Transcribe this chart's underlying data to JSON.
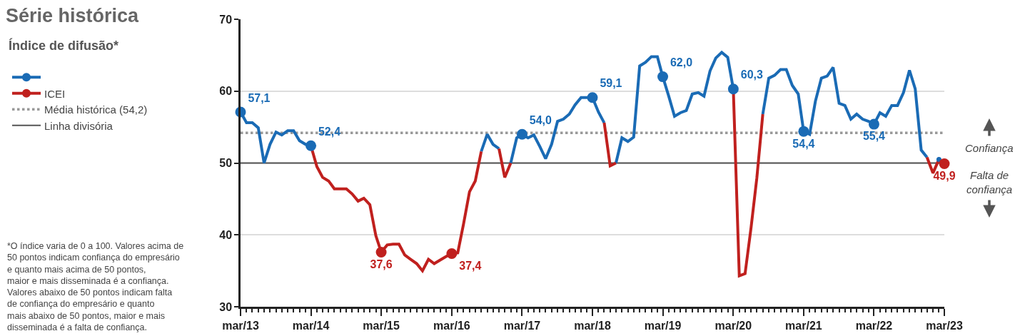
{
  "chart_data": {
    "type": "line",
    "title": "Série histórica",
    "subtitle": "Índice de difusão*",
    "x": [
      "2013-03",
      "2013-04",
      "2013-05",
      "2013-06",
      "2013-07",
      "2013-08",
      "2013-09",
      "2013-10",
      "2013-11",
      "2013-12",
      "2014-01",
      "2014-02",
      "2014-03",
      "2014-04",
      "2014-05",
      "2014-06",
      "2014-07",
      "2014-08",
      "2014-09",
      "2014-10",
      "2014-11",
      "2014-12",
      "2015-01",
      "2015-02",
      "2015-03",
      "2015-04",
      "2015-05",
      "2015-06",
      "2015-07",
      "2015-08",
      "2015-09",
      "2015-10",
      "2015-11",
      "2015-12",
      "2016-01",
      "2016-02",
      "2016-03",
      "2016-04",
      "2016-05",
      "2016-06",
      "2016-07",
      "2016-08",
      "2016-09",
      "2016-10",
      "2016-11",
      "2016-12",
      "2017-01",
      "2017-02",
      "2017-03",
      "2017-04",
      "2017-05",
      "2017-06",
      "2017-07",
      "2017-08",
      "2017-09",
      "2017-10",
      "2017-11",
      "2017-12",
      "2018-01",
      "2018-02",
      "2018-03",
      "2018-04",
      "2018-05",
      "2018-06",
      "2018-07",
      "2018-08",
      "2018-09",
      "2018-10",
      "2018-11",
      "2018-12",
      "2019-01",
      "2019-02",
      "2019-03",
      "2019-04",
      "2019-05",
      "2019-06",
      "2019-07",
      "2019-08",
      "2019-09",
      "2019-10",
      "2019-11",
      "2019-12",
      "2020-01",
      "2020-02",
      "2020-03",
      "2020-04",
      "2020-05",
      "2020-06",
      "2020-07",
      "2020-08",
      "2020-09",
      "2020-10",
      "2020-11",
      "2020-12",
      "2021-01",
      "2021-02",
      "2021-03",
      "2021-04",
      "2021-05",
      "2021-06",
      "2021-07",
      "2021-08",
      "2021-09",
      "2021-10",
      "2021-11",
      "2021-12",
      "2022-01",
      "2022-02",
      "2022-03",
      "2022-04",
      "2022-05",
      "2022-06",
      "2022-07",
      "2022-08",
      "2022-09",
      "2022-10",
      "2022-11",
      "2022-12",
      "2023-01",
      "2023-02",
      "2023-03"
    ],
    "series": [
      {
        "color": "#1a6bb5",
        "values": [
          57.1,
          55.6,
          55.6,
          54.9,
          50.0,
          52.6,
          54.3,
          53.9,
          54.5,
          54.5,
          53.1,
          52.6,
          52.4,
          null,
          null,
          null,
          null,
          null,
          null,
          null,
          null,
          null,
          null,
          null,
          null,
          null,
          null,
          null,
          null,
          null,
          null,
          null,
          null,
          null,
          null,
          null,
          null,
          null,
          null,
          null,
          null,
          51.6,
          54.0,
          52.6,
          52.0,
          null,
          50.0,
          53.5,
          54.0,
          53.5,
          53.9,
          52.3,
          50.6,
          52.6,
          55.8,
          56.1,
          56.8,
          58.1,
          59.1,
          59.1,
          59.1,
          57.1,
          55.6,
          null,
          50.0,
          53.5,
          53.0,
          53.6,
          63.5,
          64.0,
          64.8,
          64.8,
          62.0,
          59.3,
          56.5,
          57.0,
          57.3,
          59.6,
          59.8,
          59.3,
          62.8,
          64.6,
          65.4,
          64.7,
          60.3,
          null,
          null,
          null,
          null,
          56.8,
          61.8,
          62.2,
          63.0,
          63.0,
          60.8,
          59.6,
          54.4,
          54.0,
          58.6,
          61.8,
          62.1,
          63.3,
          58.3,
          58.0,
          56.1,
          56.8,
          56.1,
          55.8,
          55.4,
          57.0,
          56.5,
          58.0,
          58.0,
          59.8,
          62.9,
          60.3,
          51.8,
          50.8,
          null,
          50.5,
          null
        ],
        "value_labels": [
          "57,1",
          null,
          null,
          null,
          null,
          null,
          null,
          null,
          null,
          null,
          null,
          null,
          "52,4",
          null,
          null,
          null,
          null,
          null,
          null,
          null,
          null,
          null,
          null,
          null,
          null,
          null,
          null,
          null,
          null,
          null,
          null,
          null,
          null,
          null,
          null,
          null,
          null,
          null,
          null,
          null,
          null,
          null,
          null,
          null,
          null,
          null,
          null,
          null,
          "54,0",
          null,
          null,
          null,
          null,
          null,
          null,
          null,
          null,
          null,
          null,
          null,
          "59,1",
          null,
          null,
          null,
          null,
          null,
          null,
          null,
          null,
          null,
          null,
          null,
          "62,0",
          null,
          null,
          null,
          null,
          null,
          null,
          null,
          null,
          null,
          null,
          null,
          "60,3",
          null,
          null,
          null,
          null,
          null,
          null,
          null,
          null,
          null,
          null,
          null,
          "54,4",
          null,
          null,
          null,
          null,
          null,
          null,
          null,
          null,
          null,
          null,
          null,
          "55,4",
          null,
          null,
          null,
          null,
          null,
          null,
          null,
          null,
          null,
          null,
          null,
          null
        ]
      },
      {
        "name": "ICEI",
        "color": "#c0201e",
        "values": [
          null,
          null,
          null,
          null,
          null,
          null,
          null,
          null,
          null,
          null,
          null,
          null,
          52.4,
          49.5,
          48.0,
          47.5,
          46.4,
          46.4,
          46.4,
          45.7,
          44.7,
          45.1,
          44.2,
          39.9,
          37.6,
          38.6,
          38.7,
          38.7,
          37.2,
          36.6,
          36.0,
          35.0,
          36.6,
          36.0,
          36.5,
          37.0,
          37.4,
          37.5,
          41.5,
          46.0,
          47.5,
          51.6,
          null,
          null,
          52.0,
          48.0,
          50.0,
          null,
          null,
          null,
          null,
          null,
          null,
          null,
          null,
          null,
          null,
          null,
          null,
          null,
          null,
          null,
          55.6,
          49.6,
          50.0,
          null,
          null,
          null,
          null,
          null,
          null,
          null,
          null,
          null,
          null,
          null,
          null,
          null,
          null,
          null,
          null,
          null,
          null,
          null,
          60.3,
          34.3,
          34.6,
          41.0,
          47.9,
          56.8,
          null,
          null,
          null,
          null,
          null,
          null,
          null,
          null,
          null,
          null,
          null,
          null,
          null,
          null,
          null,
          null,
          null,
          null,
          null,
          null,
          null,
          null,
          null,
          null,
          null,
          null,
          null,
          50.8,
          48.6,
          50.5,
          49.9
        ],
        "value_labels": [
          null,
          null,
          null,
          null,
          null,
          null,
          null,
          null,
          null,
          null,
          null,
          null,
          null,
          null,
          null,
          null,
          null,
          null,
          null,
          null,
          null,
          null,
          null,
          null,
          "37,6",
          null,
          null,
          null,
          null,
          null,
          null,
          null,
          null,
          null,
          null,
          null,
          "37,4",
          null,
          null,
          null,
          null,
          null,
          null,
          null,
          null,
          null,
          null,
          null,
          null,
          null,
          null,
          null,
          null,
          null,
          null,
          null,
          null,
          null,
          null,
          null,
          null,
          null,
          null,
          null,
          null,
          null,
          null,
          null,
          null,
          null,
          null,
          null,
          null,
          null,
          null,
          null,
          null,
          null,
          null,
          null,
          null,
          null,
          null,
          null,
          null,
          null,
          null,
          null,
          null,
          null,
          null,
          null,
          null,
          null,
          null,
          null,
          null,
          null,
          null,
          null,
          null,
          null,
          null,
          null,
          null,
          null,
          null,
          null,
          null,
          null,
          null,
          null,
          null,
          null,
          null,
          null,
          null,
          null,
          null,
          null,
          "49,9"
        ]
      }
    ],
    "xlim": [
      "2013-03",
      "2023-03"
    ],
    "xticks": [
      {
        "value": "2013-03",
        "label": "mar/13"
      },
      {
        "value": "2014-03",
        "label": "mar/14"
      },
      {
        "value": "2015-03",
        "label": "mar/15"
      },
      {
        "value": "2016-03",
        "label": "mar/16"
      },
      {
        "value": "2017-03",
        "label": "mar/17"
      },
      {
        "value": "2018-03",
        "label": "mar/18"
      },
      {
        "value": "2019-03",
        "label": "mar/19"
      },
      {
        "value": "2020-03",
        "label": "mar/20"
      },
      {
        "value": "2021-03",
        "label": "mar/21"
      },
      {
        "value": "2022-03",
        "label": "mar/22"
      },
      {
        "value": "2023-03",
        "label": "mar/23"
      }
    ],
    "ylim": [
      30,
      70
    ],
    "yticks": [
      30,
      40,
      50,
      60,
      70
    ],
    "grid": "y",
    "legend": "left",
    "ref_lines": [
      {
        "axis": "y",
        "value": 54.2,
        "label": "Média histórica (54,2)",
        "color": "#999999",
        "line_style": "dotted"
      },
      {
        "axis": "y",
        "value": 50,
        "label": "Linha divisória",
        "color": "#555555",
        "line_style": "solid"
      }
    ],
    "annotations": [
      "*O índice varia de 0 a 100. Valores acima de\n50 pontos indicam confiança do empresário\ne quanto mais acima de 50 pontos,\nmaior e mais disseminada é a confiança.\nValores abaixo de 50 pontos indicam falta\nde confiança do empresário e quanto\nmais abaixo de 50 pontos, maior e mais\ndisseminada é a falta de confiança.",
      "Confiança",
      "Falta de\nconfiança"
    ]
  }
}
